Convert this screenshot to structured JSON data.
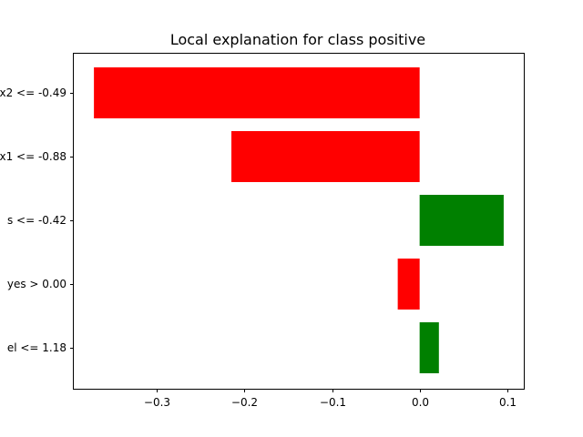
{
  "chart_data": {
    "type": "bar",
    "orientation": "horizontal",
    "title": "Local explanation for class positive",
    "categories": [
      "x2 <= -0.49",
      "x1 <= -0.88",
      "s <= -0.42",
      "yes > 0.00",
      "el <= 1.18"
    ],
    "values": [
      -0.372,
      -0.215,
      0.096,
      -0.025,
      0.022
    ],
    "colors": [
      "#ff0000",
      "#ff0000",
      "#008000",
      "#ff0000",
      "#008000"
    ],
    "xlim": [
      -0.395,
      0.12
    ],
    "xticks": [
      -0.3,
      -0.2,
      -0.1,
      0.0,
      0.1
    ],
    "xtick_labels": [
      "−0.3",
      "−0.2",
      "−0.1",
      "0.0",
      "0.1"
    ],
    "xlabel": "",
    "ylabel": "",
    "grid": false,
    "legend": "none"
  }
}
